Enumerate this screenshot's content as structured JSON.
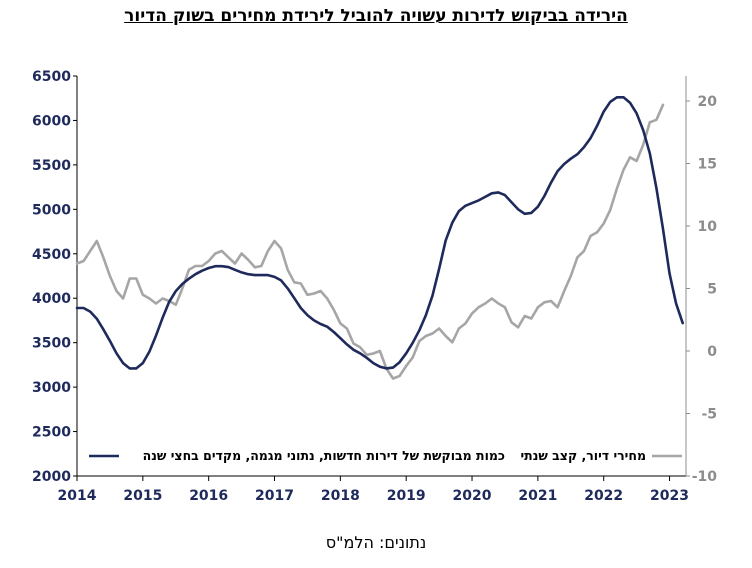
{
  "chart_data": {
    "type": "line",
    "title": "הירידה בביקוש לדירות עשויה להוביל לירידת מחירים בשוק הדיור",
    "source": "נתונים: הלמ\"ס",
    "colors": {
      "demand": "#1f2a5c",
      "prices": "#a6a6a6",
      "axis_left": "#1f2a5c",
      "axis_right": "#8c8c8c"
    },
    "x_ticks": [
      "2014",
      "2015",
      "2016",
      "2017",
      "2018",
      "2019",
      "2020",
      "2021",
      "2022",
      "2023"
    ],
    "xlim": [
      2014,
      2023.25
    ],
    "left_axis": {
      "ylim": [
        2000,
        6500
      ],
      "ticks": [
        "2000",
        "2500",
        "3000",
        "3500",
        "4000",
        "4500",
        "5000",
        "5500",
        "6000",
        "6500"
      ]
    },
    "right_axis": {
      "ylim": [
        -10,
        22
      ],
      "ticks": [
        "-10",
        "-5",
        "0",
        "5",
        "10",
        "15",
        "20"
      ]
    },
    "series": [
      {
        "name": "כמות מבוקשת של דירות חדשות, נתוני מגמה, מקדים בחצי שנה",
        "axis": "left",
        "points": [
          [
            2014.0,
            3890
          ],
          [
            2014.1,
            3890
          ],
          [
            2014.2,
            3850
          ],
          [
            2014.3,
            3770
          ],
          [
            2014.4,
            3650
          ],
          [
            2014.5,
            3520
          ],
          [
            2014.6,
            3380
          ],
          [
            2014.7,
            3270
          ],
          [
            2014.8,
            3210
          ],
          [
            2014.9,
            3210
          ],
          [
            2015.0,
            3270
          ],
          [
            2015.1,
            3400
          ],
          [
            2015.2,
            3580
          ],
          [
            2015.3,
            3780
          ],
          [
            2015.4,
            3960
          ],
          [
            2015.5,
            4080
          ],
          [
            2015.6,
            4160
          ],
          [
            2015.7,
            4220
          ],
          [
            2015.8,
            4270
          ],
          [
            2015.9,
            4310
          ],
          [
            2016.0,
            4340
          ],
          [
            2016.1,
            4360
          ],
          [
            2016.2,
            4360
          ],
          [
            2016.3,
            4350
          ],
          [
            2016.4,
            4320
          ],
          [
            2016.5,
            4290
          ],
          [
            2016.6,
            4270
          ],
          [
            2016.7,
            4260
          ],
          [
            2016.8,
            4260
          ],
          [
            2016.9,
            4260
          ],
          [
            2017.0,
            4240
          ],
          [
            2017.1,
            4200
          ],
          [
            2017.2,
            4110
          ],
          [
            2017.3,
            4000
          ],
          [
            2017.4,
            3890
          ],
          [
            2017.5,
            3810
          ],
          [
            2017.6,
            3750
          ],
          [
            2017.7,
            3710
          ],
          [
            2017.8,
            3680
          ],
          [
            2017.9,
            3620
          ],
          [
            2018.0,
            3550
          ],
          [
            2018.1,
            3480
          ],
          [
            2018.2,
            3420
          ],
          [
            2018.3,
            3380
          ],
          [
            2018.4,
            3330
          ],
          [
            2018.5,
            3270
          ],
          [
            2018.6,
            3230
          ],
          [
            2018.7,
            3210
          ],
          [
            2018.8,
            3220
          ],
          [
            2018.9,
            3280
          ],
          [
            2019.0,
            3380
          ],
          [
            2019.1,
            3500
          ],
          [
            2019.2,
            3640
          ],
          [
            2019.3,
            3810
          ],
          [
            2019.4,
            4030
          ],
          [
            2019.5,
            4330
          ],
          [
            2019.6,
            4650
          ],
          [
            2019.7,
            4850
          ],
          [
            2019.8,
            4980
          ],
          [
            2019.9,
            5040
          ],
          [
            2020.0,
            5070
          ],
          [
            2020.1,
            5100
          ],
          [
            2020.2,
            5140
          ],
          [
            2020.3,
            5180
          ],
          [
            2020.4,
            5190
          ],
          [
            2020.5,
            5160
          ],
          [
            2020.6,
            5080
          ],
          [
            2020.7,
            5000
          ],
          [
            2020.8,
            4950
          ],
          [
            2020.9,
            4960
          ],
          [
            2021.0,
            5030
          ],
          [
            2021.1,
            5150
          ],
          [
            2021.2,
            5300
          ],
          [
            2021.3,
            5430
          ],
          [
            2021.4,
            5510
          ],
          [
            2021.5,
            5570
          ],
          [
            2021.6,
            5620
          ],
          [
            2021.7,
            5700
          ],
          [
            2021.8,
            5800
          ],
          [
            2021.9,
            5940
          ],
          [
            2022.0,
            6100
          ],
          [
            2022.1,
            6210
          ],
          [
            2022.2,
            6260
          ],
          [
            2022.3,
            6260
          ],
          [
            2022.4,
            6200
          ],
          [
            2022.5,
            6080
          ],
          [
            2022.6,
            5890
          ],
          [
            2022.7,
            5630
          ],
          [
            2022.8,
            5240
          ],
          [
            2022.9,
            4780
          ],
          [
            2023.0,
            4280
          ],
          [
            2023.1,
            3940
          ],
          [
            2023.2,
            3720
          ]
        ]
      },
      {
        "name": "מחירי דיור, קצב שנתי",
        "axis": "right",
        "points": [
          [
            2014.0,
            7.0
          ],
          [
            2014.1,
            7.2
          ],
          [
            2014.2,
            8.0
          ],
          [
            2014.3,
            8.8
          ],
          [
            2014.4,
            7.5
          ],
          [
            2014.5,
            6.0
          ],
          [
            2014.6,
            4.8
          ],
          [
            2014.7,
            4.2
          ],
          [
            2014.8,
            5.8
          ],
          [
            2014.9,
            5.8
          ],
          [
            2015.0,
            4.5
          ],
          [
            2015.1,
            4.2
          ],
          [
            2015.2,
            3.8
          ],
          [
            2015.3,
            4.2
          ],
          [
            2015.4,
            4.0
          ],
          [
            2015.5,
            3.7
          ],
          [
            2015.6,
            5.0
          ],
          [
            2015.7,
            6.5
          ],
          [
            2015.8,
            6.8
          ],
          [
            2015.9,
            6.8
          ],
          [
            2016.0,
            7.2
          ],
          [
            2016.1,
            7.8
          ],
          [
            2016.2,
            8.0
          ],
          [
            2016.3,
            7.5
          ],
          [
            2016.4,
            7.0
          ],
          [
            2016.5,
            7.8
          ],
          [
            2016.6,
            7.3
          ],
          [
            2016.7,
            6.7
          ],
          [
            2016.8,
            6.8
          ],
          [
            2016.9,
            8.0
          ],
          [
            2017.0,
            8.8
          ],
          [
            2017.1,
            8.2
          ],
          [
            2017.2,
            6.5
          ],
          [
            2017.3,
            5.5
          ],
          [
            2017.4,
            5.4
          ],
          [
            2017.5,
            4.5
          ],
          [
            2017.6,
            4.6
          ],
          [
            2017.7,
            4.8
          ],
          [
            2017.8,
            4.2
          ],
          [
            2017.9,
            3.3
          ],
          [
            2018.0,
            2.2
          ],
          [
            2018.1,
            1.8
          ],
          [
            2018.2,
            0.6
          ],
          [
            2018.3,
            0.3
          ],
          [
            2018.4,
            -0.3
          ],
          [
            2018.5,
            -0.2
          ],
          [
            2018.6,
            0.0
          ],
          [
            2018.7,
            -1.4
          ],
          [
            2018.8,
            -2.2
          ],
          [
            2018.9,
            -2.0
          ],
          [
            2019.0,
            -1.2
          ],
          [
            2019.1,
            -0.5
          ],
          [
            2019.2,
            0.8
          ],
          [
            2019.3,
            1.2
          ],
          [
            2019.4,
            1.4
          ],
          [
            2019.5,
            1.8
          ],
          [
            2019.6,
            1.2
          ],
          [
            2019.7,
            0.7
          ],
          [
            2019.8,
            1.8
          ],
          [
            2019.9,
            2.2
          ],
          [
            2020.0,
            3.0
          ],
          [
            2020.1,
            3.5
          ],
          [
            2020.2,
            3.8
          ],
          [
            2020.3,
            4.2
          ],
          [
            2020.4,
            3.8
          ],
          [
            2020.5,
            3.5
          ],
          [
            2020.6,
            2.3
          ],
          [
            2020.7,
            1.9
          ],
          [
            2020.8,
            2.8
          ],
          [
            2020.9,
            2.6
          ],
          [
            2021.0,
            3.5
          ],
          [
            2021.1,
            3.9
          ],
          [
            2021.2,
            4.0
          ],
          [
            2021.3,
            3.5
          ],
          [
            2021.4,
            4.8
          ],
          [
            2021.5,
            6.0
          ],
          [
            2021.6,
            7.5
          ],
          [
            2021.7,
            8.0
          ],
          [
            2021.8,
            9.2
          ],
          [
            2021.9,
            9.5
          ],
          [
            2022.0,
            10.2
          ],
          [
            2022.1,
            11.3
          ],
          [
            2022.2,
            13.0
          ],
          [
            2022.3,
            14.5
          ],
          [
            2022.4,
            15.5
          ],
          [
            2022.5,
            15.2
          ],
          [
            2022.6,
            16.5
          ],
          [
            2022.7,
            18.3
          ],
          [
            2022.8,
            18.5
          ],
          [
            2022.9,
            19.7
          ]
        ]
      }
    ]
  }
}
